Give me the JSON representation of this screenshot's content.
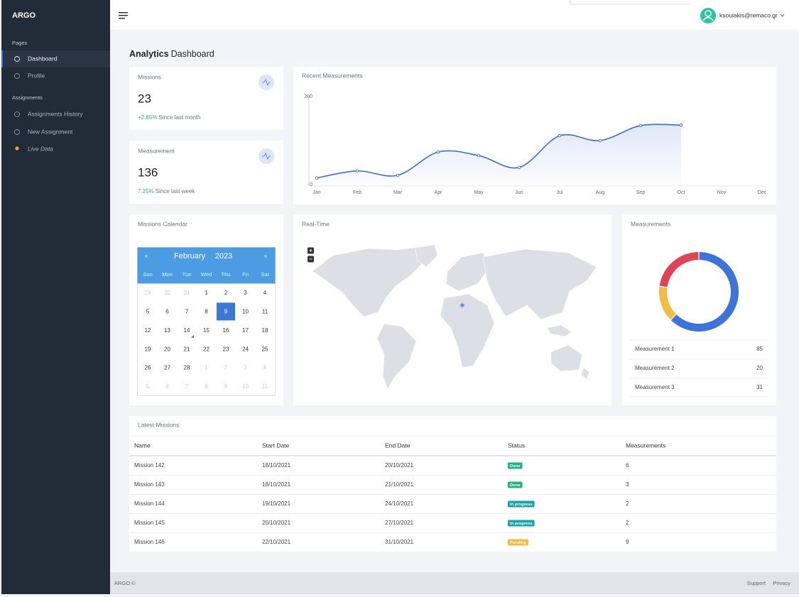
{
  "sidebar": {
    "brand": "ARGO",
    "sections": [
      {
        "title": "Pages",
        "items": [
          "Dashboard",
          "Profile"
        ]
      },
      {
        "title": "Assignments",
        "items": [
          "Assignments History",
          "New Assignment",
          "Live Data"
        ]
      }
    ]
  },
  "topbar": {
    "user": "ksoulakis@remaco.gr"
  },
  "page_title": {
    "bold": "Analytics",
    "rest": "Dashboard"
  },
  "stats": [
    {
      "title": "Missions",
      "value": 23,
      "change": "+2.65%",
      "note": "Since last month"
    },
    {
      "title": "Measurement",
      "value": 136,
      "change": "7.25%",
      "note": "Since last week"
    }
  ],
  "chart_data": [
    {
      "type": "line",
      "title": "Recent Measurements",
      "categories": [
        "Jan",
        "Feb",
        "Mar",
        "Apr",
        "May",
        "Jun",
        "Jul",
        "Aug",
        "Sep",
        "Oct",
        "Nov",
        "Dec"
      ],
      "series": [
        {
          "name": "Measurements",
          "color": "#3a6fd0",
          "values": [
            15,
            31,
            21,
            74,
            66,
            39,
            111,
            100,
            134,
            135,
            null,
            null
          ]
        }
      ],
      "ylim": [
        0,
        200
      ],
      "yticks": [
        0,
        200
      ]
    },
    {
      "type": "pie",
      "title": "Measurements",
      "categories": [
        "Measurement 1",
        "Measurement 2",
        "Measurement 3"
      ],
      "values": [
        85,
        20,
        31
      ],
      "colors": [
        "#3e73d9",
        "#f5bc45",
        "#de4456"
      ]
    }
  ],
  "calendar": {
    "title": "Missions Calendar",
    "month": "February",
    "year": 2023,
    "prev": "«",
    "next": "»",
    "weekdays": [
      "Sun",
      "Mon",
      "Tue",
      "Wed",
      "Thu",
      "Fri",
      "Sat"
    ],
    "leading_days": [
      29,
      30,
      31
    ],
    "days": [
      1,
      2,
      3,
      4,
      5,
      6,
      7,
      8,
      9,
      10,
      11,
      12,
      13,
      14,
      15,
      16,
      17,
      18,
      19,
      20,
      21,
      22,
      23,
      24,
      25,
      26,
      27,
      28
    ],
    "trailing_days": [
      1,
      2,
      3,
      4,
      5,
      6,
      7,
      8,
      9,
      10,
      11
    ],
    "selected": 9,
    "marked": 14
  },
  "map": {
    "title": "Real-Time",
    "zoom_in": "+",
    "zoom_out": "−"
  },
  "missions_table": {
    "title": "Latest Missions",
    "headers": [
      "Name",
      "Start Date",
      "End Date",
      "Status",
      "Measurements"
    ],
    "rows": [
      [
        "Mission 142",
        "18/10/2021",
        "20/10/2021",
        "Done",
        6
      ],
      [
        "Mission 143",
        "18/10/2021",
        "21/10/2021",
        "Done",
        3
      ],
      [
        "Mission 144",
        "19/10/2021",
        "24/10/2021",
        "In progress",
        2
      ],
      [
        "Mission 145",
        "20/10/2021",
        "27/10/2021",
        "In progress",
        2
      ],
      [
        "Mission 146",
        "22/10/2021",
        "31/10/2021",
        "Pending",
        9
      ]
    ],
    "status_colors": [
      "#22b384",
      "#22b384",
      "#1aa0ae",
      "#1aa0ae",
      "#f4b942"
    ]
  },
  "footer": {
    "brand": "ARGO ©",
    "links": [
      "Support",
      "Privacy"
    ]
  }
}
